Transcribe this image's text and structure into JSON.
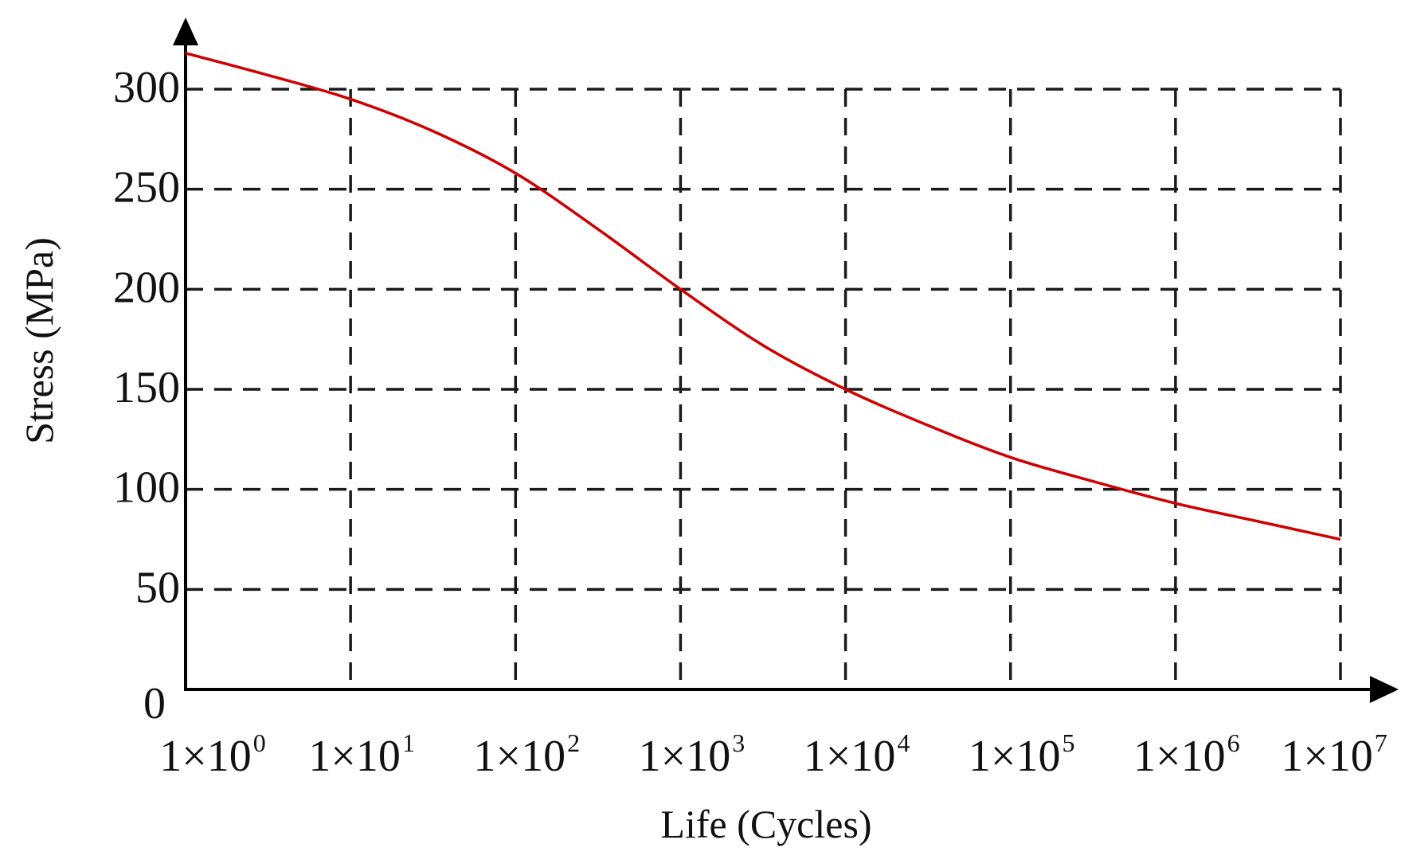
{
  "chart_data": {
    "type": "line",
    "title": "",
    "xlabel": "Life (Cycles)",
    "ylabel": "Stress (MPa)",
    "x_scale": "log",
    "xlim": [
      1,
      10000000
    ],
    "ylim": [
      0,
      300
    ],
    "grid": true,
    "x_ticks": [
      {
        "base": "1×10",
        "exp": "0"
      },
      {
        "base": "1×10",
        "exp": "1"
      },
      {
        "base": "1×10",
        "exp": "2"
      },
      {
        "base": "1×10",
        "exp": "3"
      },
      {
        "base": "1×10",
        "exp": "4"
      },
      {
        "base": "1×10",
        "exp": "5"
      },
      {
        "base": "1×10",
        "exp": "6"
      },
      {
        "base": "1×10",
        "exp": "7"
      }
    ],
    "y_ticks": [
      "0",
      "50",
      "100",
      "150",
      "200",
      "250",
      "300"
    ],
    "series": [
      {
        "color": "#d00000",
        "x": [
          1,
          3.16,
          10,
          31.6,
          100,
          316,
          1000,
          3160,
          10000,
          31600,
          100000,
          316000,
          1000000,
          3160000,
          10000000
        ],
        "y": [
          318,
          307,
          295,
          279,
          258,
          230,
          200,
          172,
          150,
          132,
          116,
          104,
          93,
          84,
          75
        ]
      }
    ]
  }
}
